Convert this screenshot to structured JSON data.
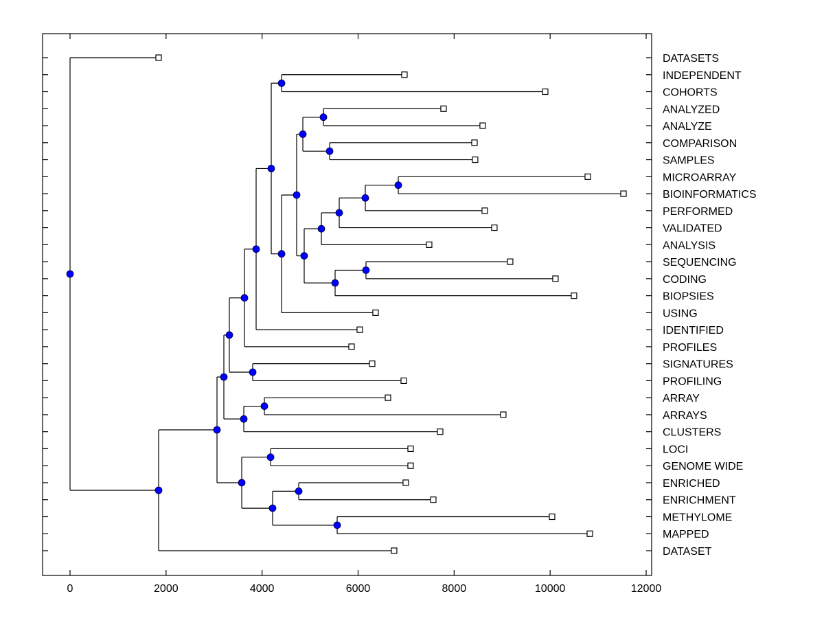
{
  "chart_data": {
    "type": "dendrogram",
    "title": "",
    "xlabel": "",
    "ylabel": "",
    "xlim": [
      -600,
      12100
    ],
    "x_ticks": [
      0,
      2000,
      4000,
      6000,
      8000,
      10000,
      12000
    ],
    "x_tick_labels": [
      "0",
      "2000",
      "4000",
      "6000",
      "8000",
      "10000",
      "12000"
    ],
    "grid": false,
    "orientation": "root-left",
    "node_color": "#0000FF",
    "leaf_marker_color": "#FFFFFF",
    "line_color": "#000000",
    "leaves": [
      {
        "label": "DATASETS",
        "value": 1845
      },
      {
        "label": "INDEPENDENT",
        "value": 6965
      },
      {
        "label": "COHORTS",
        "value": 9897
      },
      {
        "label": "ANALYZED",
        "value": 7780
      },
      {
        "label": "ANALYZE",
        "value": 8595
      },
      {
        "label": "COMPARISON",
        "value": 8424
      },
      {
        "label": "SAMPLES",
        "value": 8438
      },
      {
        "label": "MICROARRAY",
        "value": 10784
      },
      {
        "label": "BIOINFORMATICS",
        "value": 11528
      },
      {
        "label": "PERFORMED",
        "value": 8638
      },
      {
        "label": "VALIDATED",
        "value": 8838
      },
      {
        "label": "ANALYSIS",
        "value": 7480
      },
      {
        "label": "SEQUENCING",
        "value": 9167
      },
      {
        "label": "CODING",
        "value": 10111
      },
      {
        "label": "BIOPSIES",
        "value": 10497
      },
      {
        "label": "USING",
        "value": 6364
      },
      {
        "label": "IDENTIFIED",
        "value": 6035
      },
      {
        "label": "PROFILES",
        "value": 5864
      },
      {
        "label": "SIGNATURES",
        "value": 6293
      },
      {
        "label": "PROFILING",
        "value": 6951
      },
      {
        "label": "ARRAY",
        "value": 6622
      },
      {
        "label": "ARRAYS",
        "value": 9024
      },
      {
        "label": "CLUSTERS",
        "value": 7709
      },
      {
        "label": "LOCI",
        "value": 7094
      },
      {
        "label": "GENOME WIDE",
        "value": 7094
      },
      {
        "label": "ENRICHED",
        "value": 6993
      },
      {
        "label": "ENRICHMENT",
        "value": 7566
      },
      {
        "label": "METHYLOME",
        "value": 10040
      },
      {
        "label": "MAPPED",
        "value": 10827
      },
      {
        "label": "DATASET",
        "value": 6750
      }
    ],
    "tree": {
      "id": "root",
      "value": 0,
      "children": [
        {
          "leaf": 0
        },
        {
          "id": "A",
          "value": 1845,
          "children": [
            {
              "id": "B",
              "value": 3061,
              "children": [
                {
                  "id": "C",
                  "value": 3204,
                  "children": [
                    {
                      "id": "I",
                      "value": 3318,
                      "children": [
                        {
                          "id": "L",
                          "value": 3633,
                          "children": [
                            {
                              "id": "N",
                              "value": 3876,
                              "children": [
                                {
                                  "id": "O",
                                  "value": 4191,
                                  "children": [
                                    {
                                      "id": "P",
                                      "value": 4406,
                                      "children": [
                                        {
                                          "leaf": 1
                                        },
                                        {
                                          "leaf": 2
                                        }
                                      ]
                                    },
                                    {
                                      "id": "Q",
                                      "value": 4406,
                                      "children": [
                                        {
                                          "id": "R",
                                          "value": 4720,
                                          "children": [
                                            {
                                              "id": "S",
                                              "value": 4849,
                                              "children": [
                                                {
                                                  "id": "U",
                                                  "value": 5278,
                                                  "children": [
                                                    {
                                                      "leaf": 3
                                                    },
                                                    {
                                                      "leaf": 4
                                                    }
                                                  ]
                                                },
                                                {
                                                  "id": "V",
                                                  "value": 5407,
                                                  "children": [
                                                    {
                                                      "leaf": 5
                                                    },
                                                    {
                                                      "leaf": 6
                                                    }
                                                  ]
                                                }
                                              ]
                                            },
                                            {
                                              "id": "T",
                                              "value": 4877,
                                              "children": [
                                                {
                                                  "id": "W",
                                                  "value": 5235,
                                                  "children": [
                                                    {
                                                      "id": "Y",
                                                      "value": 5607,
                                                      "children": [
                                                        {
                                                          "id": "Z",
                                                          "value": 6150,
                                                          "children": [
                                                            {
                                                              "id": "AA",
                                                              "value": 6837,
                                                              "children": [
                                                                {
                                                                  "leaf": 7
                                                                },
                                                                {
                                                                  "leaf": 8
                                                                }
                                                              ]
                                                            },
                                                            {
                                                              "leaf": 9
                                                            }
                                                          ]
                                                        },
                                                        {
                                                          "leaf": 10
                                                        }
                                                      ]
                                                    },
                                                    {
                                                      "leaf": 11
                                                    }
                                                  ]
                                                },
                                                {
                                                  "id": "X",
                                                  "value": 5521,
                                                  "children": [
                                                    {
                                                      "id": "AB",
                                                      "value": 6164,
                                                      "children": [
                                                        {
                                                          "leaf": 12
                                                        },
                                                        {
                                                          "leaf": 13
                                                        }
                                                      ]
                                                    },
                                                    {
                                                      "leaf": 14
                                                    }
                                                  ]
                                                }
                                              ]
                                            }
                                          ]
                                        },
                                        {
                                          "leaf": 15
                                        }
                                      ]
                                    }
                                  ]
                                },
                                {
                                  "leaf": 16
                                }
                              ]
                            },
                            {
                              "leaf": 17
                            }
                          ]
                        },
                        {
                          "id": "M",
                          "value": 3805,
                          "children": [
                            {
                              "leaf": 18
                            },
                            {
                              "leaf": 19
                            }
                          ]
                        }
                      ]
                    },
                    {
                      "id": "J",
                      "value": 3619,
                      "children": [
                        {
                          "id": "K",
                          "value": 4048,
                          "children": [
                            {
                              "leaf": 20
                            },
                            {
                              "leaf": 21
                            }
                          ]
                        },
                        {
                          "leaf": 22
                        }
                      ]
                    }
                  ]
                },
                {
                  "id": "D",
                  "value": 3576,
                  "children": [
                    {
                      "id": "E",
                      "value": 4177,
                      "children": [
                        {
                          "leaf": 23
                        },
                        {
                          "leaf": 24
                        }
                      ]
                    },
                    {
                      "id": "F",
                      "value": 4219,
                      "children": [
                        {
                          "id": "G",
                          "value": 4763,
                          "children": [
                            {
                              "leaf": 25
                            },
                            {
                              "leaf": 26
                            }
                          ]
                        },
                        {
                          "id": "H",
                          "value": 5564,
                          "children": [
                            {
                              "leaf": 27
                            },
                            {
                              "leaf": 28
                            }
                          ]
                        }
                      ]
                    }
                  ]
                }
              ]
            },
            {
              "leaf": 29
            }
          ]
        }
      ]
    }
  }
}
